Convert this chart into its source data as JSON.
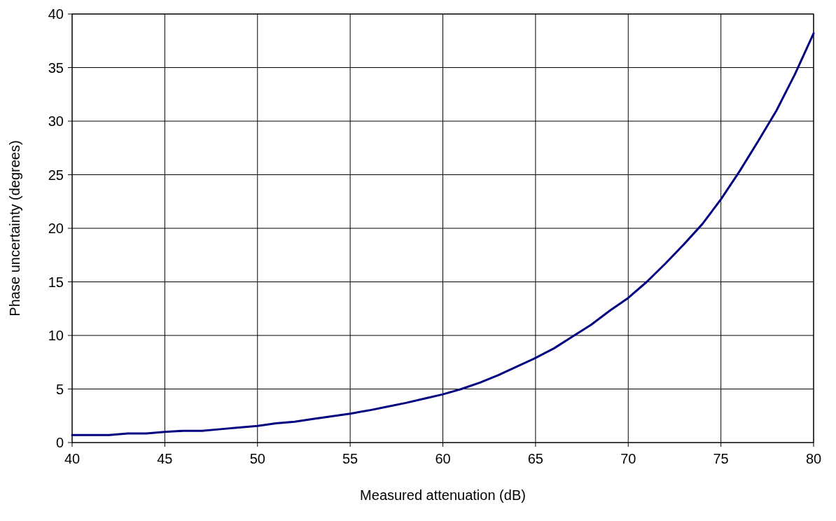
{
  "chart_data": {
    "type": "line",
    "xlabel": "Measured attenuation (dB)",
    "ylabel": "Phase uncertainty (degrees)",
    "x": [
      40,
      41,
      42,
      43,
      44,
      45,
      46,
      47,
      48,
      49,
      50,
      51,
      52,
      53,
      54,
      55,
      56,
      57,
      58,
      59,
      60,
      61,
      62,
      63,
      64,
      65,
      66,
      67,
      68,
      69,
      70,
      71,
      72,
      73,
      74,
      75,
      76,
      77,
      78,
      79,
      80
    ],
    "series": [
      {
        "color": "#000080",
        "values": [
          0.7,
          0.7,
          0.7,
          0.85,
          0.85,
          1.0,
          1.1,
          1.1,
          1.25,
          1.4,
          1.55,
          1.8,
          1.95,
          2.2,
          2.45,
          2.7,
          3.0,
          3.35,
          3.7,
          4.1,
          4.5,
          5.0,
          5.6,
          6.3,
          7.1,
          7.9,
          8.8,
          9.9,
          11.0,
          12.3,
          13.5,
          15.0,
          16.7,
          18.5,
          20.4,
          22.7,
          25.3,
          28.1,
          31.0,
          34.4,
          38.2
        ]
      }
    ],
    "xlim": [
      40,
      80
    ],
    "xticks": [
      40,
      45,
      50,
      55,
      60,
      65,
      70,
      75,
      80
    ],
    "ylim": [
      0,
      40
    ],
    "yticks": [
      0,
      5,
      10,
      15,
      20,
      25,
      30,
      35,
      40
    ],
    "grid": true,
    "marker": "none",
    "line_style": "solid"
  }
}
